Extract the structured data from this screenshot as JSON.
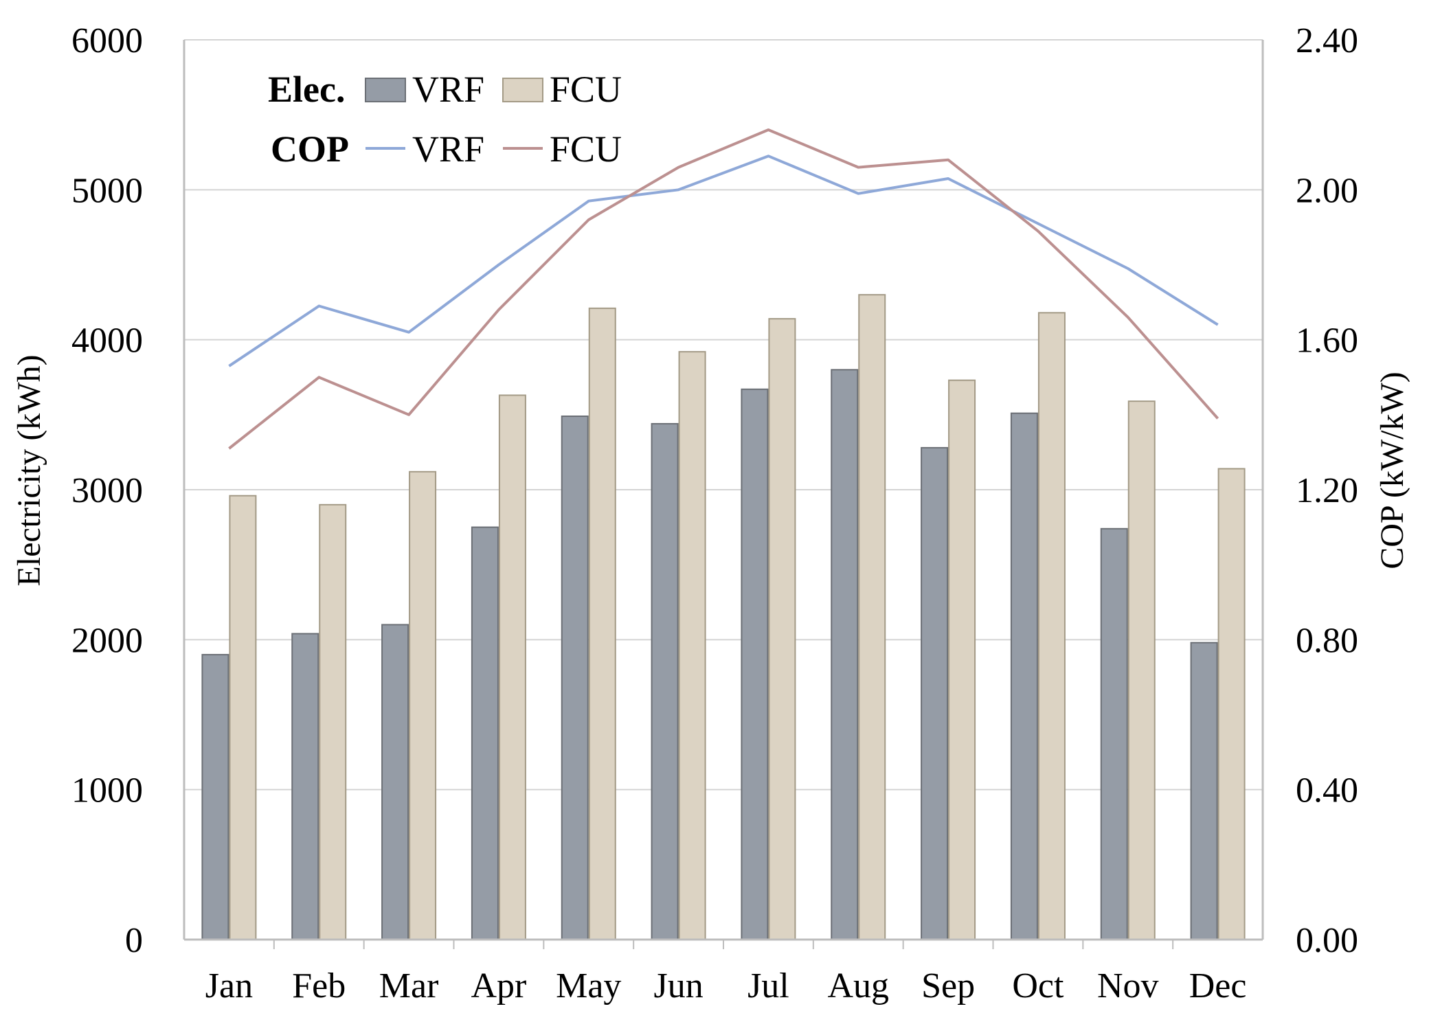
{
  "chart_data": {
    "type": "bar+line",
    "categories": [
      "Jan",
      "Feb",
      "Mar",
      "Apr",
      "May",
      "Jun",
      "Jul",
      "Aug",
      "Sep",
      "Oct",
      "Nov",
      "Dec"
    ],
    "bar_series": [
      {
        "name": "VRF",
        "color": "#959ca6",
        "values": [
          1900,
          2040,
          2100,
          2750,
          3490,
          3440,
          3670,
          3800,
          3280,
          3510,
          2740,
          1980
        ]
      },
      {
        "name": "FCU",
        "color": "#dcd3c3",
        "values": [
          2960,
          2900,
          3120,
          3630,
          4210,
          3920,
          4140,
          4300,
          3730,
          4180,
          3590,
          3140
        ]
      }
    ],
    "line_series": [
      {
        "name": "VRF",
        "color": "#8ea8d8",
        "values": [
          1.53,
          1.69,
          1.62,
          1.8,
          1.97,
          2.0,
          2.09,
          1.99,
          2.03,
          1.91,
          1.79,
          1.64
        ]
      },
      {
        "name": "FCU",
        "color": "#bc9090",
        "values": [
          1.31,
          1.5,
          1.4,
          1.68,
          1.92,
          2.06,
          2.16,
          2.06,
          2.08,
          1.89,
          1.66,
          1.39
        ]
      }
    ],
    "ylabel": "Electricity (kWh)",
    "y2label": "COP (kW/kW)",
    "ylim": [
      0,
      6000
    ],
    "y2lim": [
      0,
      2.4
    ],
    "yticks": [
      "0",
      "1000",
      "2000",
      "3000",
      "4000",
      "5000",
      "6000"
    ],
    "y2ticks": [
      "0.00",
      "0.40",
      "0.80",
      "1.20",
      "1.60",
      "2.00",
      "2.40"
    ],
    "grid": true,
    "legend": {
      "position": "top-left",
      "elec_label": "Elec.",
      "cop_label": "COP",
      "vrf_label": "VRF",
      "fcu_label": "FCU"
    }
  }
}
